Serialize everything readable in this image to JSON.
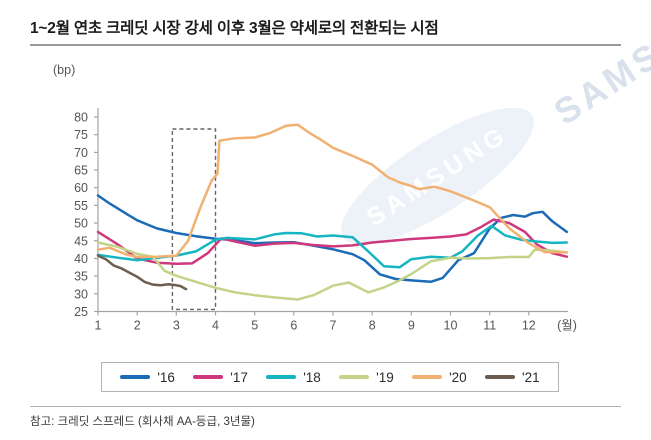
{
  "page": {
    "title": "1~2월 연초 크레딧 시장 강세 이후 3월은 약세로의 전환되는 시점",
    "footnote": "참고: 크레딧 스프레드 (회사채 AA-등급, 3년물)",
    "watermark_text": "SAMSUNG"
  },
  "chart_data": {
    "type": "line",
    "title": "1~2월 연초 크레딧 시장 강세 이후 3월은 약세로의 전환되는 시점",
    "unit_label": "(bp)",
    "xlabel": "(월)",
    "ylabel": "(bp)",
    "ylim": [
      25,
      80
    ],
    "xlim": [
      1,
      13
    ],
    "yticks": [
      25,
      30,
      35,
      40,
      45,
      50,
      55,
      60,
      65,
      70,
      75,
      80
    ],
    "xticks": [
      1,
      2,
      3,
      4,
      5,
      6,
      7,
      8,
      9,
      10,
      11,
      12
    ],
    "grid": false,
    "legend_position": "bottom",
    "axis_color": "#a5a5a5",
    "tick_label_color": "#555555",
    "highlight_box": {
      "x1": 2.9,
      "x2": 4.0,
      "y1": 25.6,
      "y2": 76.6,
      "style": "dashed",
      "color": "#666666"
    },
    "series": [
      {
        "name": "'16",
        "color": "#1b6bb7",
        "x": [
          1,
          1.3,
          1.7,
          2,
          2.5,
          3,
          3.5,
          4,
          4.5,
          5,
          5.5,
          6,
          6.5,
          7,
          7.5,
          7.8,
          8.2,
          8.6,
          9,
          9.5,
          9.8,
          10.2,
          10.6,
          11,
          11.3,
          11.6,
          11.9,
          12.1,
          12.35,
          12.6,
          12.97
        ],
        "values": [
          57.8,
          55.5,
          52.8,
          50.8,
          48.5,
          47.2,
          46.3,
          45.6,
          45.2,
          44.3,
          44.5,
          44.6,
          43.6,
          42.6,
          41.2,
          39.5,
          35.5,
          34.2,
          33.8,
          33.4,
          34.5,
          39.5,
          41.5,
          48.5,
          51.5,
          52.3,
          51.8,
          52.8,
          53.2,
          50.5,
          47.5
        ]
      },
      {
        "name": "'17",
        "color": "#d0387d",
        "x": [
          1,
          1.5,
          2,
          2.5,
          3,
          3.4,
          3.8,
          4.15,
          4.5,
          5,
          5.5,
          6,
          6.5,
          7,
          7.5,
          8,
          8.5,
          9,
          9.5,
          10,
          10.4,
          10.8,
          11.1,
          11.5,
          11.9,
          12.2,
          12.6,
          12.97
        ],
        "values": [
          47.5,
          44,
          40,
          38.8,
          38.5,
          38.6,
          41.5,
          45.7,
          44.8,
          43.6,
          44.2,
          44.4,
          43.8,
          43.4,
          43.7,
          44.5,
          45,
          45.5,
          45.8,
          46.2,
          46.8,
          49,
          51,
          50,
          47.5,
          44,
          41.5,
          40.5
        ]
      },
      {
        "name": "'18",
        "color": "#16b5c2",
        "x": [
          1,
          1.5,
          2,
          2.5,
          3,
          3.5,
          4,
          4.3,
          5,
          5.5,
          5.8,
          6.2,
          6.6,
          7,
          7.5,
          7.9,
          8.3,
          8.7,
          9,
          9.5,
          10,
          10.3,
          10.7,
          11.05,
          11.4,
          11.8,
          12.2,
          12.6,
          12.97
        ],
        "values": [
          41,
          40.2,
          39.5,
          40.2,
          40.8,
          42,
          45.3,
          45.8,
          45.4,
          46.8,
          47.2,
          47.1,
          46.2,
          46.5,
          46,
          42,
          37.8,
          37.5,
          39.8,
          40.5,
          40.2,
          42,
          46.5,
          49.2,
          46.5,
          45.3,
          44.8,
          44.4,
          44.5
        ]
      },
      {
        "name": "'19",
        "color": "#c3d489",
        "x": [
          1,
          1.5,
          2,
          2.4,
          2.7,
          3,
          3.5,
          4,
          4.5,
          5,
          5.5,
          6.1,
          6.5,
          7,
          7.4,
          7.9,
          8.3,
          8.7,
          9,
          9.5,
          10,
          10.5,
          11,
          11.5,
          12,
          12.15,
          12.5,
          12.97
        ],
        "values": [
          44.5,
          43.3,
          41.3,
          40.5,
          36.5,
          35.1,
          33.4,
          31.7,
          30.4,
          29.6,
          29,
          28.4,
          29.6,
          32.3,
          33.2,
          30.4,
          31.8,
          33.8,
          35.6,
          39.2,
          40.2,
          40,
          40.1,
          40.4,
          40.4,
          42.5,
          42.3,
          41.7
        ]
      },
      {
        "name": "'20",
        "color": "#f0b173",
        "x": [
          1,
          1.3,
          1.7,
          2,
          2.5,
          3,
          3.3,
          3.6,
          3.9,
          4.05,
          4.1,
          4.5,
          5,
          5.4,
          5.8,
          6.1,
          6.4,
          6.7,
          7,
          7.5,
          8,
          8.4,
          8.7,
          9,
          9.2,
          9.6,
          10,
          10.5,
          11,
          11.5,
          12,
          12.4,
          12.97
        ],
        "values": [
          42.5,
          43,
          41.2,
          40.4,
          40.5,
          40.8,
          45,
          54,
          62,
          64,
          73.3,
          74,
          74.2,
          75.5,
          77.5,
          77.8,
          75.5,
          73.5,
          71.3,
          69,
          66.5,
          63,
          61.5,
          60.5,
          59.6,
          60.3,
          59,
          56.8,
          54.5,
          48.5,
          44.3,
          41.8,
          41.7
        ]
      },
      {
        "name": "'21",
        "color": "#6c5d4f",
        "x": [
          1,
          1.2,
          1.4,
          1.6,
          1.8,
          2,
          2.2,
          2.4,
          2.6,
          2.8,
          3,
          3.1,
          3.25
        ],
        "values": [
          40.8,
          39.8,
          38,
          37.2,
          36,
          34.8,
          33.3,
          32.6,
          32.4,
          32.7,
          32.4,
          32.2,
          31.3
        ]
      }
    ]
  }
}
